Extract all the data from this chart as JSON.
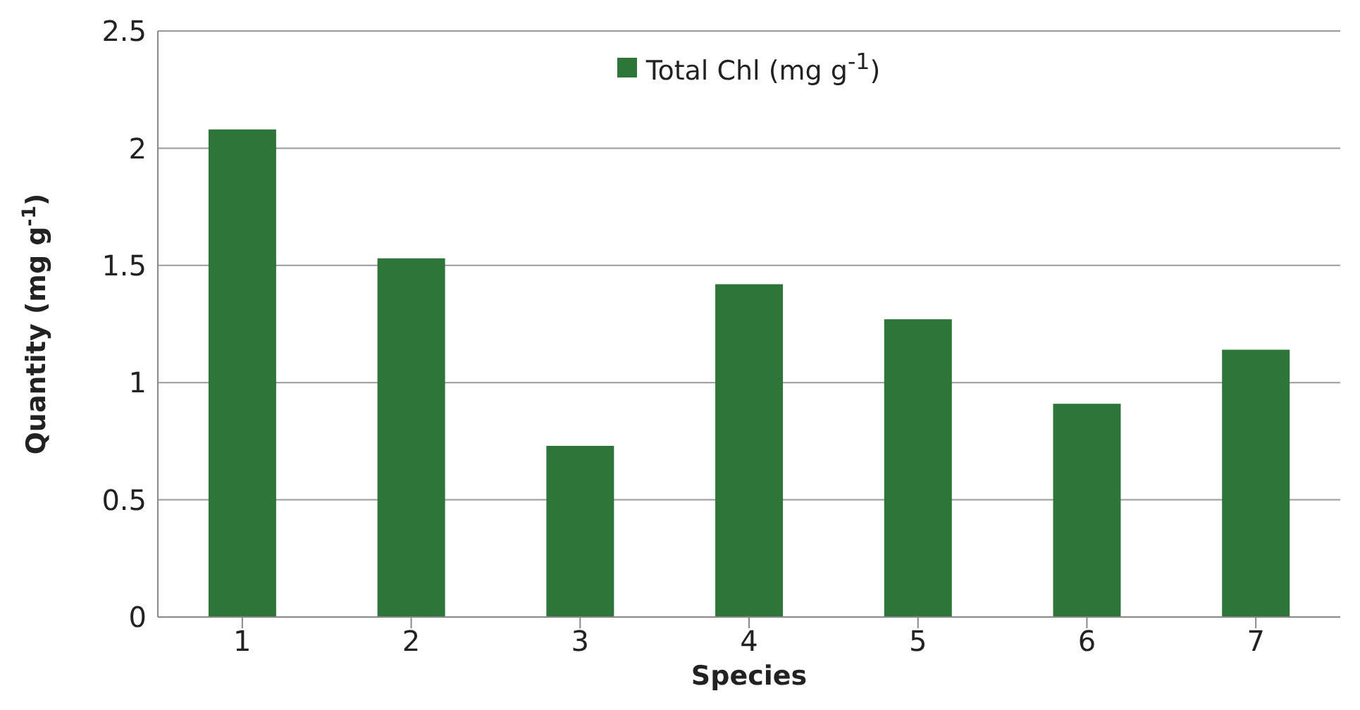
{
  "chart_data": {
    "type": "bar",
    "xlabel": "Species",
    "ylabel": "Quantity (mg g$^{-1}$)",
    "categories": [
      "1",
      "2",
      "3",
      "4",
      "5",
      "6",
      "7"
    ],
    "series": [
      {
        "name": "Total Chl (mg  g$^{-1}$)",
        "color": "#2e7539",
        "values": [
          2.08,
          1.53,
          0.73,
          1.42,
          1.27,
          0.91,
          1.14
        ]
      }
    ],
    "ylim": [
      0,
      2.5
    ],
    "yticks": [
      0,
      0.5,
      1,
      1.5,
      2,
      2.5
    ],
    "grid": "y",
    "legend": "top"
  }
}
